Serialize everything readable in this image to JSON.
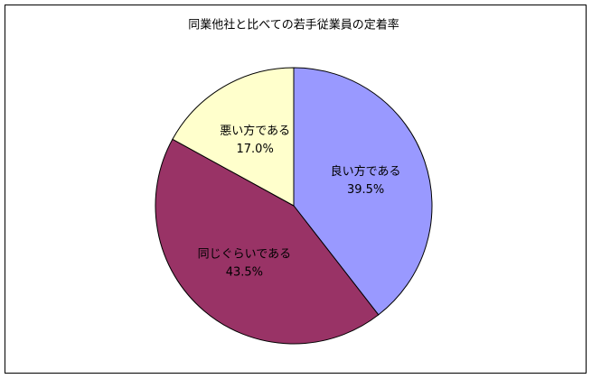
{
  "chart_data": {
    "type": "pie",
    "title": "同業他社と比べての若手従業員の定着率",
    "categories": [
      "良い方である",
      "同じぐらいである",
      "悪い方である"
    ],
    "values": [
      39.5,
      43.5,
      17.0
    ],
    "value_labels": [
      "39.5%",
      "43.5%",
      "17.0%"
    ],
    "colors": [
      "#9999ff",
      "#993366",
      "#ffffcc"
    ]
  }
}
